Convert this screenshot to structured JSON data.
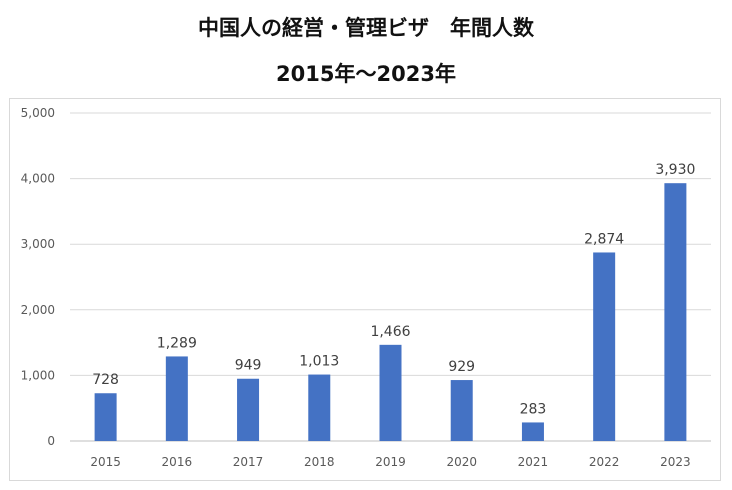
{
  "chart_data": {
    "type": "bar",
    "title": "中国人の経営・管理ビザ　年間人数",
    "subtitle": "2015年～2023年",
    "xlabel": "",
    "ylabel": "",
    "categories": [
      "2015",
      "2016",
      "2017",
      "2018",
      "2019",
      "2020",
      "2021",
      "2022",
      "2023"
    ],
    "values": [
      728,
      1289,
      949,
      1013,
      1466,
      929,
      283,
      2874,
      3930
    ],
    "value_labels": [
      "728",
      "1,289",
      "949",
      "1,013",
      "1,466",
      "929",
      "283",
      "2,874",
      "3,930"
    ],
    "ylim": [
      0,
      5000
    ],
    "yticks": [
      "0",
      "1,000",
      "2,000",
      "3,000",
      "4,000",
      "5,000"
    ],
    "ytick_values": [
      0,
      1000,
      2000,
      3000,
      4000,
      5000
    ],
    "grid": true,
    "legend": "none",
    "colors": {
      "bar": "#4472c4",
      "grid": "#d9d9d9",
      "axis": "#bfbfbf"
    }
  }
}
